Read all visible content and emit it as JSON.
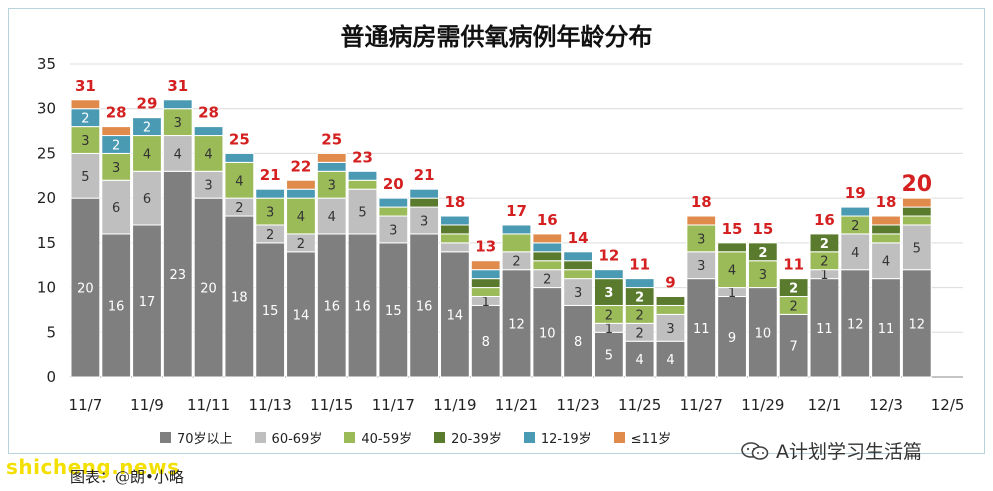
{
  "title": "普通病房需供氧病例年龄分布",
  "watermark": "shicheng.news",
  "source_label": "图表：@朗•小略",
  "wechat_label": "A计划学习生活篇",
  "chart_data": {
    "type": "bar",
    "stacked": true,
    "title": "普通病房需供氧病例年龄分布",
    "ylim": [
      0,
      35
    ],
    "yticks": [
      0,
      5,
      10,
      15,
      20,
      25,
      30,
      35
    ],
    "xtick_labels": [
      "11/7",
      "11/9",
      "11/11",
      "11/13",
      "11/15",
      "11/17",
      "11/19",
      "11/21",
      "11/23",
      "11/25",
      "11/27",
      "11/29",
      "12/1",
      "12/3",
      "12/5"
    ],
    "categories": [
      "11/7",
      "11/8",
      "11/9",
      "11/10",
      "11/11",
      "11/12",
      "11/13",
      "11/14",
      "11/15",
      "11/16",
      "11/17",
      "11/18",
      "11/19",
      "11/20",
      "11/21",
      "11/22",
      "11/23",
      "11/24",
      "11/25",
      "11/26",
      "11/27",
      "11/28",
      "11/29",
      "11/30",
      "12/1",
      "12/2",
      "12/3",
      "12/4",
      "12/5"
    ],
    "totals": [
      31,
      28,
      29,
      31,
      28,
      25,
      21,
      22,
      25,
      23,
      20,
      21,
      18,
      13,
      17,
      16,
      14,
      12,
      11,
      9,
      18,
      15,
      15,
      11,
      16,
      19,
      18,
      20,
      null
    ],
    "series": [
      {
        "name": "70岁以上",
        "color": "#7f7f7f",
        "values": [
          20,
          16,
          17,
          23,
          20,
          18,
          15,
          14,
          16,
          16,
          15,
          16,
          14,
          8,
          12,
          10,
          8,
          5,
          4,
          4,
          11,
          9,
          10,
          7,
          11,
          12,
          11,
          12,
          0
        ]
      },
      {
        "name": "60-69岁",
        "color": "#bfbfbf",
        "values": [
          5,
          6,
          6,
          4,
          3,
          2,
          2,
          2,
          4,
          5,
          3,
          3,
          1,
          1,
          2,
          2,
          3,
          1,
          2,
          3,
          3,
          1,
          0,
          0,
          1,
          4,
          4,
          5,
          0
        ]
      },
      {
        "name": "40-59岁",
        "color": "#9bbb59",
        "values": [
          3,
          3,
          4,
          3,
          4,
          4,
          3,
          4,
          3,
          1,
          1,
          0,
          1,
          1,
          2,
          1,
          1,
          2,
          2,
          1,
          3,
          4,
          3,
          2,
          2,
          2,
          1,
          1,
          0
        ]
      },
      {
        "name": "20-39岁",
        "color": "#5a7a2e",
        "values": [
          0,
          0,
          0,
          0,
          0,
          0,
          0,
          0,
          0,
          0,
          0,
          1,
          1,
          1,
          0,
          1,
          1,
          3,
          2,
          1,
          0,
          1,
          2,
          2,
          2,
          0,
          1,
          1,
          0
        ]
      },
      {
        "name": "12-19岁",
        "color": "#4a9ab4",
        "values": [
          2,
          2,
          2,
          1,
          1,
          1,
          1,
          1,
          1,
          1,
          1,
          1,
          1,
          1,
          1,
          1,
          1,
          1,
          1,
          0,
          0,
          0,
          0,
          0,
          0,
          1,
          0,
          0,
          0
        ]
      },
      {
        "name": "≤11岁",
        "color": "#e08a4b",
        "values": [
          1,
          1,
          0,
          0,
          0,
          0,
          0,
          1,
          1,
          0,
          0,
          0,
          0,
          1,
          0,
          1,
          0,
          0,
          0,
          0,
          1,
          0,
          0,
          0,
          0,
          0,
          1,
          1,
          0
        ]
      }
    ],
    "segment_labels": [
      [
        20,
        5,
        3,
        null,
        2,
        null
      ],
      [
        16,
        6,
        3,
        null,
        2,
        null
      ],
      [
        17,
        6,
        4,
        null,
        2,
        null
      ],
      [
        23,
        4,
        3,
        null,
        null,
        null
      ],
      [
        20,
        3,
        4,
        null,
        null,
        null
      ],
      [
        18,
        2,
        4,
        null,
        null,
        null
      ],
      [
        15,
        2,
        3,
        null,
        null,
        null
      ],
      [
        14,
        2,
        4,
        null,
        null,
        null
      ],
      [
        16,
        4,
        3,
        null,
        null,
        null
      ],
      [
        16,
        5,
        null,
        null,
        null,
        null
      ],
      [
        15,
        3,
        null,
        null,
        null,
        null
      ],
      [
        16,
        3,
        null,
        null,
        null,
        null
      ],
      [
        14,
        null,
        null,
        null,
        null,
        null
      ],
      [
        8,
        1,
        null,
        null,
        null,
        null
      ],
      [
        12,
        2,
        null,
        null,
        null,
        null
      ],
      [
        10,
        2,
        null,
        null,
        null,
        null
      ],
      [
        8,
        3,
        null,
        null,
        null,
        null
      ],
      [
        5,
        1,
        2,
        3,
        null,
        null
      ],
      [
        4,
        2,
        2,
        2,
        null,
        null
      ],
      [
        4,
        3,
        null,
        null,
        null,
        null
      ],
      [
        11,
        3,
        3,
        null,
        null,
        null
      ],
      [
        9,
        1,
        4,
        null,
        null,
        null
      ],
      [
        10,
        null,
        3,
        2,
        null,
        null
      ],
      [
        7,
        null,
        2,
        2,
        null,
        null
      ],
      [
        11,
        1,
        2,
        2,
        null,
        null
      ],
      [
        12,
        4,
        2,
        null,
        null,
        null
      ],
      [
        11,
        4,
        null,
        null,
        null,
        null
      ],
      [
        12,
        5,
        null,
        null,
        null,
        null
      ],
      [
        null,
        null,
        null,
        null,
        null,
        null
      ]
    ],
    "legend": [
      "70岁以上",
      "60-69岁",
      "40-59岁",
      "20-39岁",
      "12-19岁",
      "≤11岁"
    ],
    "legend_position": "bottom",
    "grid": true
  }
}
